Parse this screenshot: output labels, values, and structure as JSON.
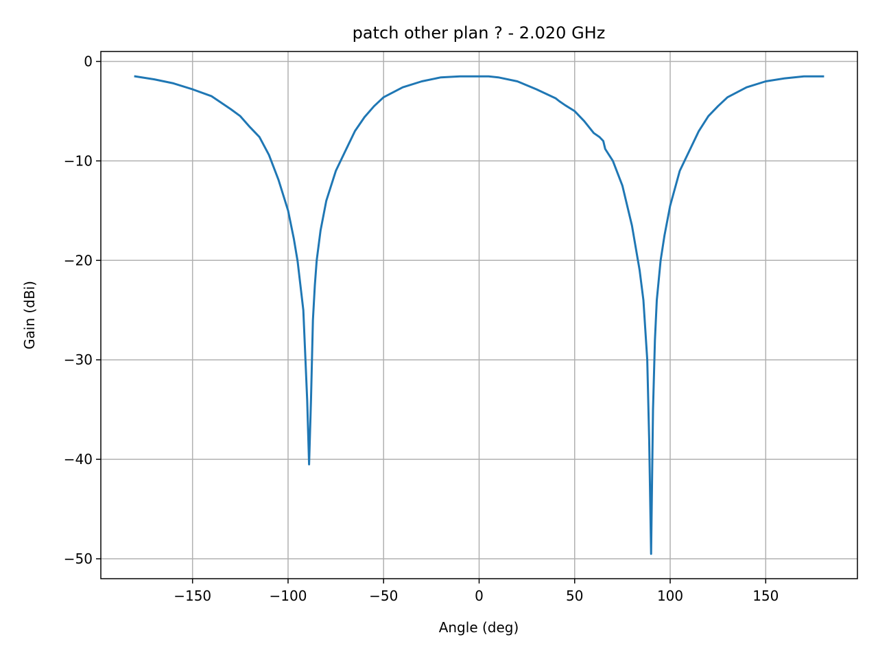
{
  "chart_data": {
    "type": "line",
    "title": "patch other plan ? - 2.020 GHz",
    "xlabel": "Angle (deg)",
    "ylabel": "Gain (dBi)",
    "xlim": [
      -198,
      198
    ],
    "ylim": [
      -52,
      1
    ],
    "xticks": [
      -150,
      -100,
      -50,
      0,
      50,
      100,
      150
    ],
    "yticks": [
      0,
      -10,
      -20,
      -30,
      -40,
      -50
    ],
    "xtick_labels": [
      "−150",
      "−100",
      "−50",
      "0",
      "50",
      "100",
      "150"
    ],
    "ytick_labels": [
      "0",
      "−10",
      "−20",
      "−30",
      "−40",
      "−50"
    ],
    "grid": true,
    "line_color": "#1f77b4",
    "series": [
      {
        "x": [
          -180,
          -170,
          -160,
          -150,
          -140,
          -130,
          -125,
          -120,
          -115,
          -110,
          -105,
          -100,
          -97,
          -95,
          -92,
          -90,
          -89,
          -88,
          -87,
          -86,
          -85,
          -83,
          -80,
          -75,
          -70,
          -65,
          -60,
          -55,
          -50,
          -40,
          -30,
          -20,
          -10,
          0,
          5,
          10,
          20,
          30,
          40,
          42,
          45,
          50,
          55,
          60,
          63,
          65,
          66,
          70,
          75,
          80,
          84,
          86,
          88,
          89,
          90,
          91,
          92,
          93,
          94,
          95,
          97,
          100,
          105,
          110,
          115,
          120,
          125,
          130,
          140,
          150,
          160,
          170,
          175,
          180
        ],
        "y": [
          -1.5,
          -1.8,
          -2.2,
          -2.8,
          -3.5,
          -4.8,
          -5.5,
          -6.6,
          -7.6,
          -9.4,
          -11.9,
          -15.0,
          -17.8,
          -20.1,
          -25.0,
          -34.0,
          -40.5,
          -34.0,
          -26.0,
          -22.5,
          -20.0,
          -17.0,
          -14.0,
          -11.0,
          -9.0,
          -7.0,
          -5.6,
          -4.5,
          -3.6,
          -2.6,
          -2.0,
          -1.6,
          -1.5,
          -1.5,
          -1.5,
          -1.6,
          -2.0,
          -2.8,
          -3.7,
          -4.0,
          -4.4,
          -5.0,
          -6.0,
          -7.2,
          -7.6,
          -8.0,
          -8.8,
          -10.0,
          -12.5,
          -16.5,
          -21.0,
          -24.0,
          -30.0,
          -38.0,
          -49.5,
          -35.0,
          -28.0,
          -24.0,
          -22.0,
          -20.0,
          -17.5,
          -14.5,
          -11.0,
          -9.0,
          -7.0,
          -5.5,
          -4.5,
          -3.6,
          -2.6,
          -2.0,
          -1.7,
          -1.5,
          -1.5,
          -1.5
        ]
      }
    ]
  }
}
